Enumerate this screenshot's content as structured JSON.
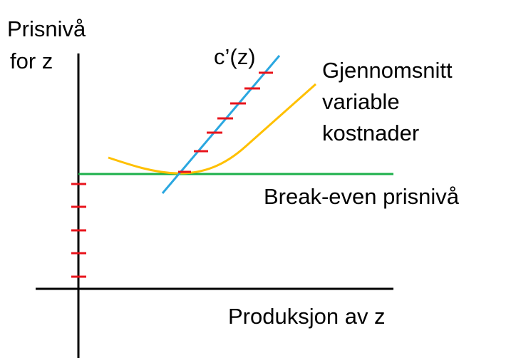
{
  "y_axis_label": [
    "Prisnivå",
    "for z"
  ],
  "marginal_cost_label": "c’(z)",
  "average_variable_cost_label": [
    "Gjennomsnitt",
    "variable",
    "kostnader"
  ],
  "break_even_label": "Break-even prisnivå",
  "x_axis_label": "Produksjon av z"
}
